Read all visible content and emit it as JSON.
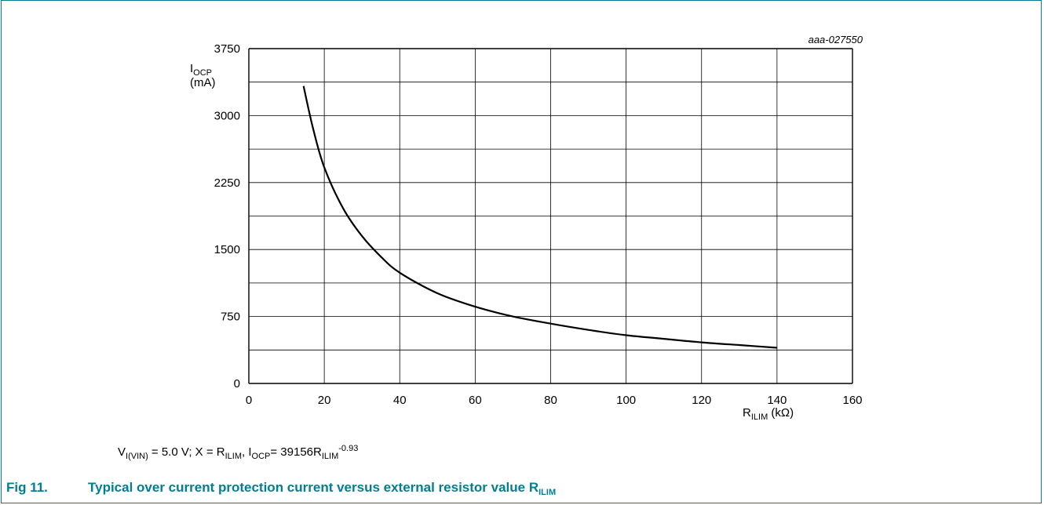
{
  "figure": {
    "code": "aaa-027550",
    "caption_number": "Fig 11.",
    "caption_text": "Typical over current protection current versus external resistor value R",
    "caption_subscript": "ILIM",
    "note": {
      "v_main": "V",
      "v_sub": "I(VIN)",
      "v_rest": " = 5.0 V; X = R",
      "r_sub": "ILIM",
      "sep": ", I",
      "i_sub": "OCP",
      "eq": "= 39156R",
      "eq_sub": "ILIM",
      "eq_sup": "-0.93"
    },
    "accent_color": "#007f91"
  },
  "chart_data": {
    "type": "line",
    "title": "",
    "ylabel_main": "I",
    "ylabel_sub": "OCP",
    "ylabel_unit": "(mA)",
    "xlabel_main": "R",
    "xlabel_sub": "ILIM",
    "xlabel_unit": "(kΩ)",
    "xlim": [
      0,
      160
    ],
    "ylim": [
      0,
      3750
    ],
    "x_ticks": [
      0,
      20,
      40,
      60,
      80,
      100,
      120,
      140,
      160
    ],
    "y_ticks": [
      0,
      750,
      1500,
      2250,
      3000,
      3750
    ],
    "grid": true,
    "series": [
      {
        "x": [
          14.5,
          17,
          20,
          25,
          30,
          35,
          40,
          50,
          60,
          70,
          80,
          90,
          100,
          110,
          120,
          130,
          140
        ],
        "y": [
          3330,
          2860,
          2420,
          1960,
          1650,
          1420,
          1240,
          1010,
          860,
          750,
          670,
          600,
          540,
          500,
          460,
          430,
          400
        ]
      }
    ]
  }
}
